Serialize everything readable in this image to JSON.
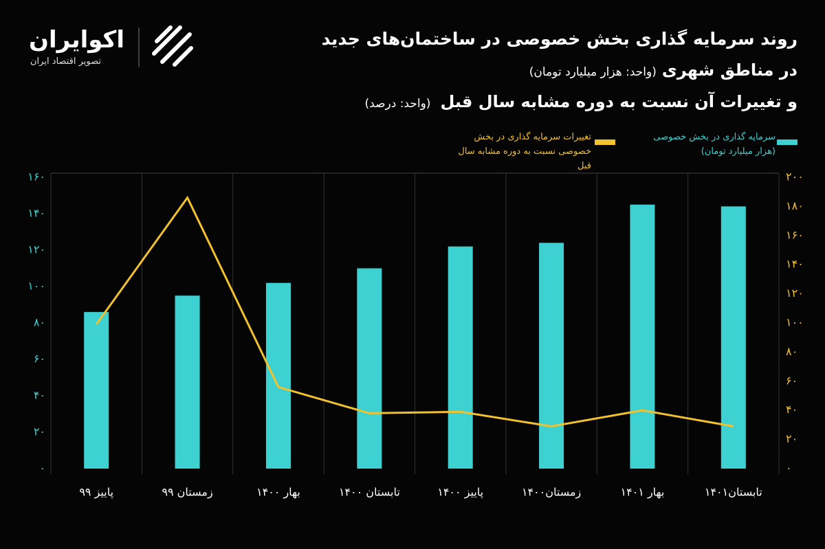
{
  "chart_data": {
    "type": "bar",
    "brand": "اکوایران",
    "brand_tagline": "تصویر اقتصاد ایران",
    "title": "روند سرمایه گذاری  بخش خصوصی در ساختمان‌های جدید",
    "subtitle": "در مناطق شهری",
    "subtitle_unit": "(واحد: هزار میلیارد تومان)",
    "subtitle2": "و تغییرات آن نسبت به دوره مشابه  سال قبل",
    "subtitle2_unit": "(واحد: درصد)",
    "categories": [
      "پاییز ۹۹",
      "زمستان ۹۹",
      "بهار ۱۴۰۰",
      "تابستان ۱۴۰۰",
      "پاییز ۱۴۰۰",
      "زمستان۱۴۰۰",
      "بهار ۱۴۰۱",
      "تابستان۱۴۰۱"
    ],
    "series": [
      {
        "name": "سرمایه گذاری در بخش خصوصی (هزار میلیارد تومان)",
        "type": "bar",
        "color": "#3ed1d1",
        "axis": "y",
        "values": [
          86,
          95,
          102,
          110,
          122,
          124,
          145,
          144
        ]
      },
      {
        "name": "تغییرات سرمایه گذاری در بخش خصوصی نسبت به دوره مشابه سال قبل",
        "type": "line",
        "color": "#f2c12e",
        "axis": "y2",
        "values": [
          99,
          186,
          56,
          38,
          39,
          29,
          40,
          29
        ]
      }
    ],
    "ylim": [
      0,
      160
    ],
    "yticks": [
      {
        "value": 0,
        "label": "۰"
      },
      {
        "value": 20,
        "label": "۲۰"
      },
      {
        "value": 40,
        "label": "۴۰"
      },
      {
        "value": 60,
        "label": "۶۰"
      },
      {
        "value": 80,
        "label": "۸۰"
      },
      {
        "value": 100,
        "label": "۱۰۰"
      },
      {
        "value": 120,
        "label": "۱۲۰"
      },
      {
        "value": 140,
        "label": "۱۴۰"
      },
      {
        "value": 160,
        "label": "۱۶۰"
      }
    ],
    "y2lim": [
      0,
      200
    ],
    "y2ticks": [
      {
        "value": 0,
        "label": "۰"
      },
      {
        "value": 20,
        "label": "۲۰"
      },
      {
        "value": 40,
        "label": "۴۰"
      },
      {
        "value": 60,
        "label": "۶۰"
      },
      {
        "value": 80,
        "label": "۸۰"
      },
      {
        "value": 100,
        "label": "۱۰۰"
      },
      {
        "value": 120,
        "label": "۱۲۰"
      },
      {
        "value": 140,
        "label": "۱۴۰"
      },
      {
        "value": 160,
        "label": "۱۶۰"
      },
      {
        "value": 180,
        "label": "۱۸۰"
      },
      {
        "value": 200,
        "label": "۲۰۰"
      }
    ]
  }
}
